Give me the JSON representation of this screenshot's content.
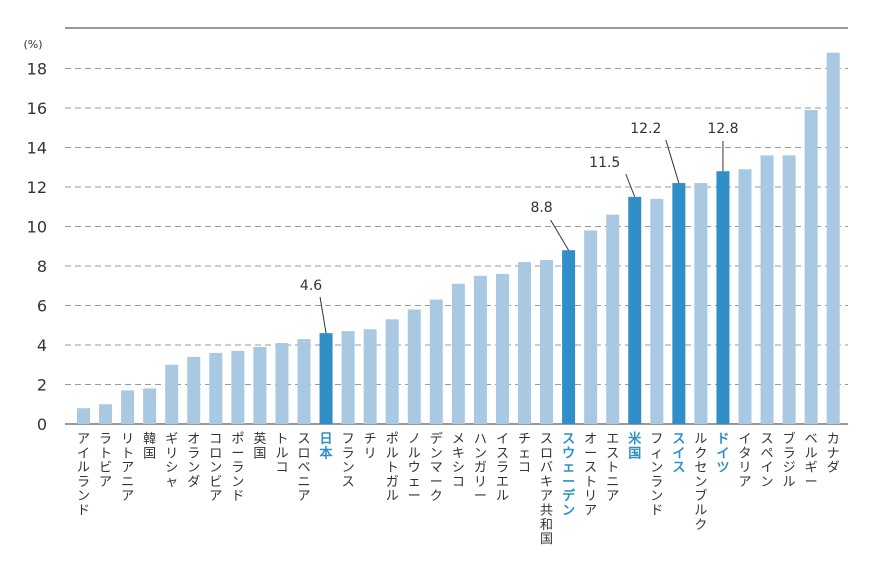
{
  "chart_data": {
    "type": "bar",
    "unit_label": "(%)",
    "ylim": [
      0,
      20
    ],
    "yticks": [
      "0",
      "2",
      "4",
      "6",
      "8",
      "10",
      "12",
      "14",
      "16",
      "18"
    ],
    "grid": true,
    "categories": [
      "アイルランド",
      "ラトビア",
      "リトアニア",
      "韓国",
      "ギリシャ",
      "オランダ",
      "コロンビア",
      "ポーランド",
      "英国",
      "トルコ",
      "スロベニア",
      "日本",
      "フランス",
      "チリ",
      "ポルトガル",
      "ノルウェー",
      "デンマーク",
      "メキシコ",
      "ハンガリー",
      "イスラエル",
      "チェコ",
      "スロバキア共和国",
      "スウェーデン",
      "オーストリア",
      "エストニア",
      "米国",
      "フィンランド",
      "スイス",
      "ルクセンブルク",
      "ドイツ",
      "イタリア",
      "スペイン",
      "ブラジル",
      "ベルギー",
      "カナダ"
    ],
    "values": [
      0.8,
      1.0,
      1.7,
      1.8,
      3.0,
      3.4,
      3.6,
      3.7,
      3.9,
      4.1,
      4.3,
      4.6,
      4.7,
      4.8,
      5.3,
      5.8,
      6.3,
      7.1,
      7.5,
      7.6,
      8.2,
      8.3,
      8.8,
      9.8,
      10.6,
      11.5,
      11.4,
      12.2,
      12.2,
      12.8,
      12.9,
      13.6,
      13.6,
      15.9,
      18.8
    ],
    "highlighted": [
      "日本",
      "スウェーデン",
      "米国",
      "スイス",
      "ドイツ"
    ],
    "annotations": [
      {
        "category": "日本",
        "label": "4.6"
      },
      {
        "category": "スウェーデン",
        "label": "8.8"
      },
      {
        "category": "米国",
        "label": "11.5"
      },
      {
        "category": "スイス",
        "label": "12.2"
      },
      {
        "category": "ドイツ",
        "label": "12.8"
      }
    ],
    "colors": {
      "bar": "#a9c9e3",
      "highlight": "#2f8fc6",
      "grid": "#9a9a9a",
      "axis": "#333333"
    }
  }
}
